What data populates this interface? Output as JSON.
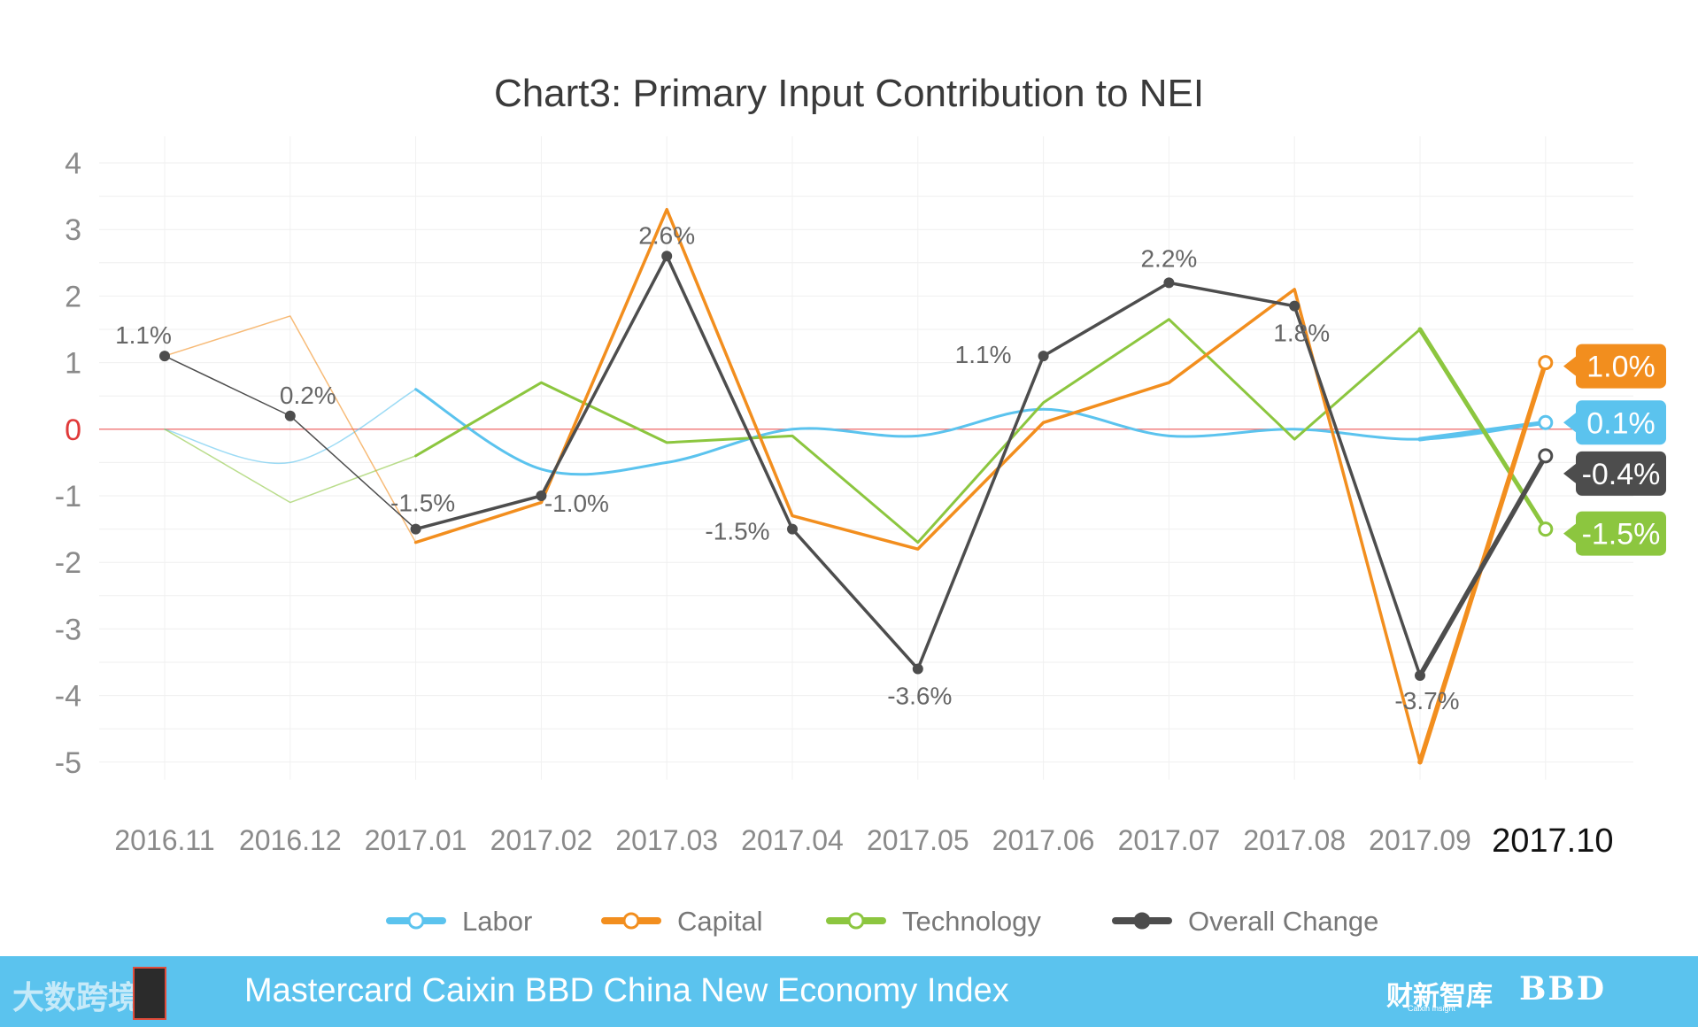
{
  "chart_data": {
    "type": "line",
    "title": "Chart3: Primary Input Contribution to NEI",
    "xlabel": "",
    "ylabel": "",
    "ylim": [
      -5,
      4
    ],
    "yticks": [
      "4",
      "3",
      "2",
      "1",
      "0",
      "-1",
      "-2",
      "-3",
      "-4",
      "-5"
    ],
    "categories": [
      "2016.11",
      "2016.12",
      "2017.01",
      "2017.02",
      "2017.03",
      "2017.04",
      "2017.05",
      "2017.06",
      "2017.07",
      "2017.08",
      "2017.09",
      "2017.10"
    ],
    "series": [
      {
        "name": "Labor",
        "color": "#5bc3ee",
        "values": [
          0,
          -0.5,
          0.6,
          -0.6,
          -0.5,
          0,
          -0.1,
          0.3,
          -0.1,
          0,
          -0.15,
          0.1
        ]
      },
      {
        "name": "Capital",
        "color": "#f28e1e",
        "values": [
          1.1,
          1.7,
          -1.7,
          -1.1,
          3.3,
          -1.3,
          -1.8,
          0.1,
          0.7,
          2.1,
          -5.0,
          1.0
        ]
      },
      {
        "name": "Technology",
        "color": "#8cc63f",
        "values": [
          0,
          -1.1,
          -0.4,
          0.7,
          -0.2,
          -0.1,
          -1.7,
          0.4,
          1.65,
          -0.15,
          1.5,
          -1.5
        ]
      },
      {
        "name": "Overall Change",
        "color": "#4d4d4d",
        "values": [
          1.1,
          0.2,
          -1.5,
          -1.0,
          2.6,
          -1.5,
          -3.6,
          1.1,
          2.2,
          1.85,
          -3.7,
          -0.4
        ]
      }
    ],
    "overall_labels": [
      "1.1%",
      "0.2%",
      "-1.5%",
      "-1.0%",
      "2.6%",
      "-1.5%",
      "-3.6%",
      "1.1%",
      "2.2%",
      "1.8%",
      "-3.7%",
      ""
    ],
    "end_labels": [
      {
        "series": "Capital",
        "text": "1.0%",
        "color": "#f28e1e"
      },
      {
        "series": "Labor",
        "text": "0.1%",
        "color": "#5bc3ee"
      },
      {
        "series": "Overall Change",
        "text": "-0.4%",
        "color": "#4d4d4d"
      },
      {
        "series": "Technology",
        "text": "-1.5%",
        "color": "#8cc63f"
      }
    ],
    "zero_line_color": "#f08080",
    "legend_position": "bottom"
  },
  "footer": {
    "title": "Mastercard Caixin BBD China New Economy Index",
    "watermark": "大数跨境",
    "brand_cn": "财新智库",
    "brand_cn_sub": "Caixin Insight",
    "brand_bbd": "BBD"
  }
}
